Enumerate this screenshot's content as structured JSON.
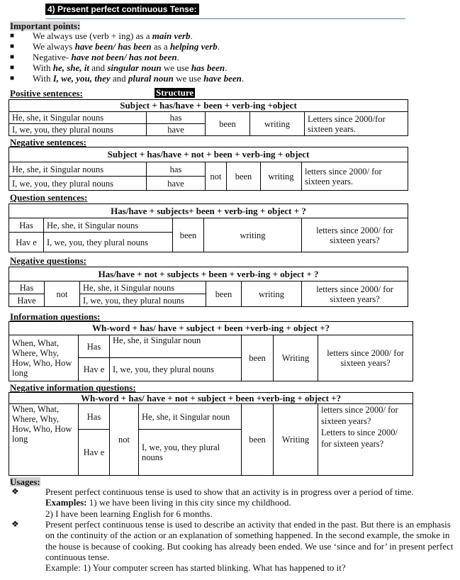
{
  "title": "4) Present perfect continuous Tense:",
  "important": {
    "heading": "Important points:",
    "items": [
      [
        "We always use (verb + ing) as a ",
        "main verb",
        "."
      ],
      [
        "We always ",
        "have been/ has been",
        " as a ",
        "helping verb",
        "."
      ],
      [
        "Negative- ",
        "have not been/ has not been",
        "."
      ],
      [
        "With ",
        "he, she, it",
        " and ",
        "singular noun",
        " we use ",
        "has been",
        "."
      ],
      [
        "With ",
        "I, we, you, they",
        " and ",
        "plural noun",
        " we use ",
        "have been",
        "."
      ]
    ]
  },
  "positive": {
    "heading": "Positive sentences:",
    "structure_label": "Structure",
    "formula": "Subject + has/have + been + verb-ing +object",
    "subj1": "He, she, it Singular nouns",
    "subj2": "I, we, you, they   plural nouns",
    "aux1": "has",
    "aux2": "have",
    "been": "been",
    "verb": "writing",
    "obj": "Letters since 2000/for sixteen years."
  },
  "negative": {
    "heading": "Negative sentences:",
    "formula": "Subject + has/have + not + been + verb-ing + object",
    "subj1": "He, she, it Singular nouns",
    "subj2": "I, we, you, they   plural nouns",
    "aux1": "has",
    "aux2": "have",
    "not": "not",
    "been": "been",
    "verb": "writing",
    "obj": "letters since 2000/ for sixteen years."
  },
  "question": {
    "heading": "Question sentences:",
    "formula": "Has/have + subjects+ been + verb-ing + object + ?",
    "aux1": "Has",
    "aux2": "Hav e",
    "subj1": "He, she, it Singular nouns",
    "subj2": "I, we, you, they   plural nouns",
    "been": "been",
    "verb": "writing",
    "obj": "letters since 2000/ for sixteen years?"
  },
  "neg_question": {
    "heading": "Negative questions:",
    "formula": "Has/have + not + subjects + been + verb-ing + object + ?",
    "aux1": "Has",
    "aux2": "Have",
    "not": "not",
    "subj1": "He, she, it Singular nouns",
    "subj2": "I, we, you, they   plural nouns",
    "been": "been",
    "verb": "writing",
    "obj": "letters since 2000/ for sixteen years?"
  },
  "info_question": {
    "heading": "Information questions:",
    "formula": "Wh-word + has/ have + subject + been +verb-ing + object +?",
    "wh": "When, What, Where, Why, How, Who, How long",
    "aux1": "Has",
    "aux2": "Hav e",
    "subj1": "He, she, it Singular noun",
    "subj2": "I, we, you, they   plural nouns",
    "been": "been",
    "verb": "Writing",
    "obj": "letters since 2000/ for sixteen years?"
  },
  "neg_info_question": {
    "heading": "Negative information questions:",
    "formula": "Wh-word + has/ have + not + subject + been +verb-ing + object +?",
    "wh": "When, What, Where, Why, How, Who, How long",
    "aux1": "Has",
    "aux2": "Hav e",
    "not": "not",
    "subj1": "He, she, it Singular noun",
    "subj2": "I, we, you, they plural nouns",
    "been": "been",
    "verb": "Writing",
    "obj1": "letters since 2000/ for sixteen years?",
    "obj2": "Letters to since 2000/ for sixteen years?"
  },
  "usages": {
    "heading": "Usages:",
    "u1": "Present perfect continuous tense is used to show that an activity is in progress over a period of time.",
    "examples_label": "Examples:",
    "ex1": " 1) we have been living in this city since my childhood.",
    "ex2": "2) I have been learning English for 6 months.",
    "u2": "Present perfect continuous tense is used to describe an activity that ended in the past. But there is an emphasis on the continuity of the action or an explanation of something happened. In the second example, the smoke in the house is because of cooking. But cooking has already been ended. We use ‘since and for’ in present perfect continuous tense.",
    "ex3": "Example: 1) Your computer screen has started blinking. What has happened to it?",
    "bullet": "❖"
  }
}
